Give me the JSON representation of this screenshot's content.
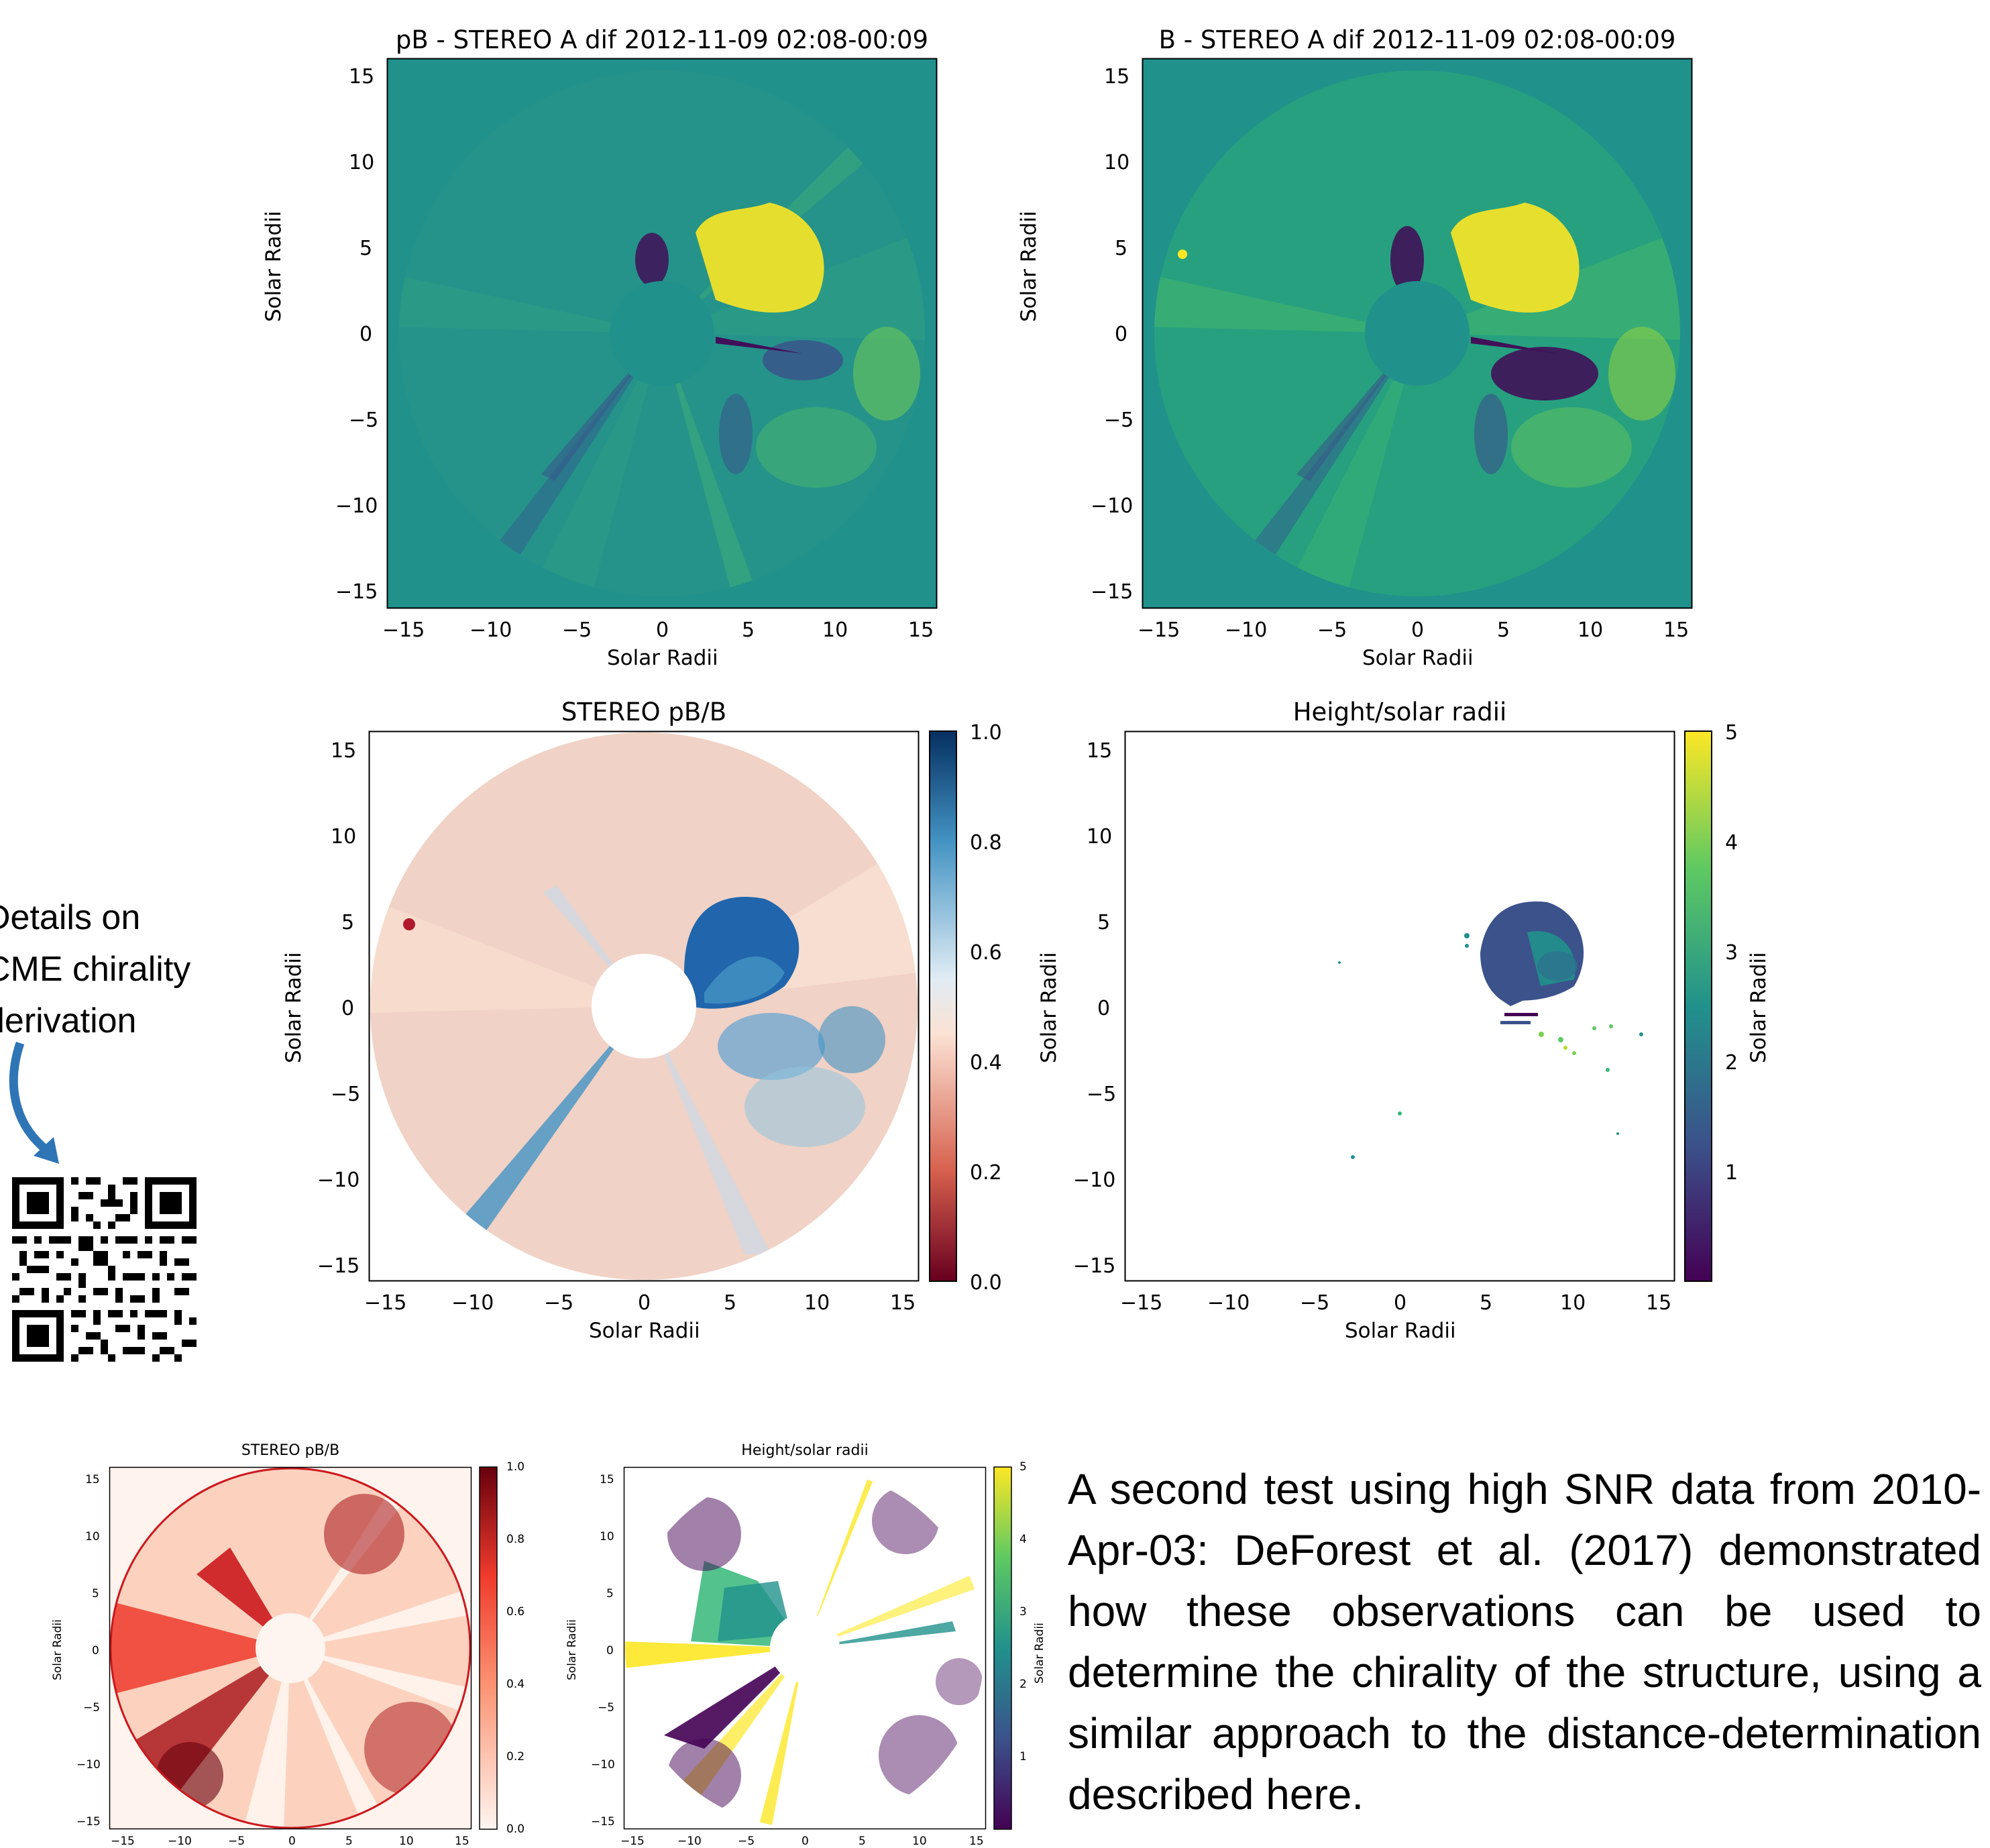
{
  "side_note": {
    "lines": [
      "Details on",
      "CME chirality",
      "derivation"
    ]
  },
  "plots": {
    "pb": {
      "title": "pB - STEREO A dif 2012-11-09 02:08-00:09",
      "xlabel": "Solar Radii",
      "ylabel": "Solar Radii",
      "ticks": [
        "15",
        "10",
        "5",
        "0",
        "−5",
        "−10",
        "−15"
      ],
      "xticks": [
        "−15",
        "−10",
        "−5",
        "0",
        "5",
        "10",
        "15"
      ]
    },
    "b": {
      "title": "B - STEREO A dif 2012-11-09 02:08-00:09",
      "xlabel": "Solar Radii",
      "ylabel": "Solar Radii",
      "ticks": [
        "15",
        "10",
        "5",
        "0",
        "−5",
        "−10",
        "−15"
      ],
      "xticks": [
        "−15",
        "−10",
        "−5",
        "0",
        "5",
        "10",
        "15"
      ]
    },
    "ratio": {
      "title": "STEREO pB/B",
      "xlabel": "Solar Radii",
      "ylabel": "Solar Radii",
      "ticks": [
        "15",
        "10",
        "5",
        "0",
        "−5",
        "−10",
        "−15"
      ],
      "xticks": [
        "−15",
        "−10",
        "−5",
        "0",
        "5",
        "10",
        "15"
      ],
      "colorbar_ticks": [
        "1.0",
        "0.8",
        "0.6",
        "0.4",
        "0.2",
        "0.0"
      ]
    },
    "height": {
      "title": "Height/solar radii",
      "xlabel": "Solar Radii",
      "ylabel": "Solar Radii",
      "colorbar_label": "Solar Radii",
      "ticks": [
        "15",
        "10",
        "5",
        "0",
        "−5",
        "−10",
        "−15"
      ],
      "xticks": [
        "−15",
        "−10",
        "−5",
        "0",
        "5",
        "10",
        "15"
      ],
      "colorbar_ticks": [
        "5",
        "4",
        "3",
        "2",
        "1"
      ]
    },
    "ratio_small": {
      "title": "STEREO pB/B",
      "ylabel": "Solar Radii",
      "ticks": [
        "15",
        "10",
        "5",
        "0",
        "−5",
        "−10",
        "−15"
      ],
      "xticks": [
        "−15",
        "−10",
        "−5",
        "0",
        "5",
        "10",
        "15"
      ],
      "colorbar_ticks": [
        "1.0",
        "0.8",
        "0.6",
        "0.4",
        "0.2",
        "0.0"
      ]
    },
    "height_small": {
      "title": "Height/solar radii",
      "ylabel": "Solar Radii",
      "colorbar_label": "Solar Radii",
      "ticks": [
        "15",
        "10",
        "5",
        "0",
        "−5",
        "−10",
        "−15"
      ],
      "xticks": [
        "−15",
        "−10",
        "−5",
        "0",
        "5",
        "10",
        "15"
      ],
      "colorbar_ticks": [
        "5",
        "4",
        "3",
        "2",
        "1"
      ]
    }
  },
  "paragraph": "A second test using high SNR data from 2010-Apr-03: DeForest et al. (2017) demonstrated how these observations can be used to determine the chirality of the structure, using a similar approach to the distance-determination described here.",
  "colors": {
    "viridis_bg": "#21918c",
    "viridis_yellow": "#fde725",
    "viridis_purple": "#440154",
    "rdbu_red": "#b2182b",
    "rdbu_blue": "#2166ac",
    "reds_dark": "#8b0000",
    "arrow_blue": "#2e75b6"
  }
}
